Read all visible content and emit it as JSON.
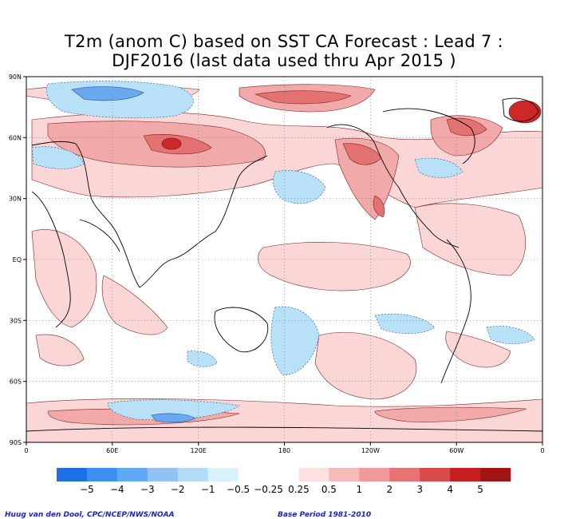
{
  "title": {
    "line1": "T2m (anom C) based on SST CA Forecast : Lead 7 :",
    "line2": "DJF2016 (last data used thru Apr 2015 )"
  },
  "axes": {
    "lat_labels": [
      "90N",
      "60N",
      "30N",
      "EQ",
      "30S",
      "60S",
      "90S"
    ],
    "lon_labels": [
      "0",
      "60E",
      "120E",
      "180",
      "120W",
      "60W",
      "0"
    ]
  },
  "legend": {
    "labels": [
      "−5",
      "−4",
      "−3",
      "−2",
      "−1",
      "−0.5",
      "−0.25",
      "0.25",
      "0.5",
      "1",
      "2",
      "3",
      "4",
      "5"
    ],
    "colors": [
      "#1e6fe6",
      "#3f8ff0",
      "#63a8f3",
      "#8fc3f5",
      "#b5dcf7",
      "#d8f1fb",
      "#ffffff",
      "#ffffff",
      "#fde0e0",
      "#f7b9b9",
      "#ef9a9a",
      "#e57474",
      "#d94a4a",
      "#c81e1e",
      "#a01414"
    ]
  },
  "credits": {
    "left": "Huug van den Dool, CPC/NCEP/NWS/NOAA",
    "right": "Base Period 1981-2010"
  }
}
